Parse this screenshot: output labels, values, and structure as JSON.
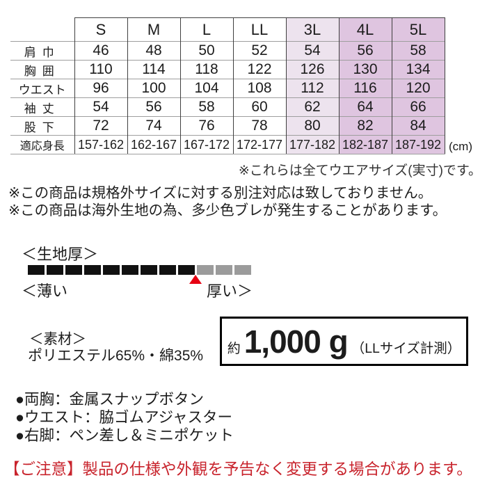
{
  "size_table": {
    "columns": [
      "S",
      "M",
      "L",
      "LL",
      "3L",
      "4L",
      "5L"
    ],
    "rows": [
      {
        "label": "肩巾",
        "values": [
          "46",
          "48",
          "50",
          "52",
          "54",
          "56",
          "58"
        ]
      },
      {
        "label": "胸囲",
        "values": [
          "110",
          "114",
          "118",
          "122",
          "126",
          "130",
          "134"
        ]
      },
      {
        "label": "ウエスト",
        "values": [
          "96",
          "100",
          "104",
          "108",
          "112",
          "116",
          "120"
        ]
      },
      {
        "label": "袖丈",
        "values": [
          "54",
          "56",
          "58",
          "60",
          "62",
          "64",
          "66"
        ]
      },
      {
        "label": "股下",
        "values": [
          "72",
          "74",
          "76",
          "78",
          "80",
          "82",
          "84"
        ]
      },
      {
        "label": "適応身長",
        "values": [
          "157-162",
          "162-167",
          "167-172",
          "172-177",
          "177-182",
          "182-187",
          "187-192"
        ]
      }
    ],
    "unit_label": "(cm)",
    "highlight": {
      "light_columns": [
        "3L"
      ],
      "dark_columns": [
        "4L",
        "5L"
      ],
      "light_color": "#EDE3EE",
      "dark_color": "#DFC5E0"
    }
  },
  "notes": {
    "wear_size_note": "※これらは全てウエアサイズ(実寸)です。",
    "line1": "※この商品は規格外サイズに対する別注対応は致しておりません。",
    "line2": "※この商品は海外生地の為、多少色ブレが発生することがあります。"
  },
  "fabric_thickness": {
    "title": "＜生地厚＞",
    "thin_label": "＜薄い",
    "thick_label": "厚い＞",
    "segments_total": 12,
    "segments_filled": 9,
    "filled_color": "#111111",
    "empty_color": "#9b9b9b",
    "marker_color": "#e60012"
  },
  "material": {
    "title": "＜素材＞",
    "composition": "ポリエステル65%・綿35%"
  },
  "weight": {
    "prefix": "約",
    "value": "1,000 g",
    "note": "（LLサイズ計測）"
  },
  "features": {
    "items": [
      "●両胸：金属スナップボタン",
      "●ウエスト：脇ゴムアジャスター",
      "●右脚：ペン差し＆ミニポケット"
    ]
  },
  "caution": {
    "text": "【ご注意】製品の仕様や外観を予告なく変更する場合があります。",
    "color": "#C8232C"
  }
}
